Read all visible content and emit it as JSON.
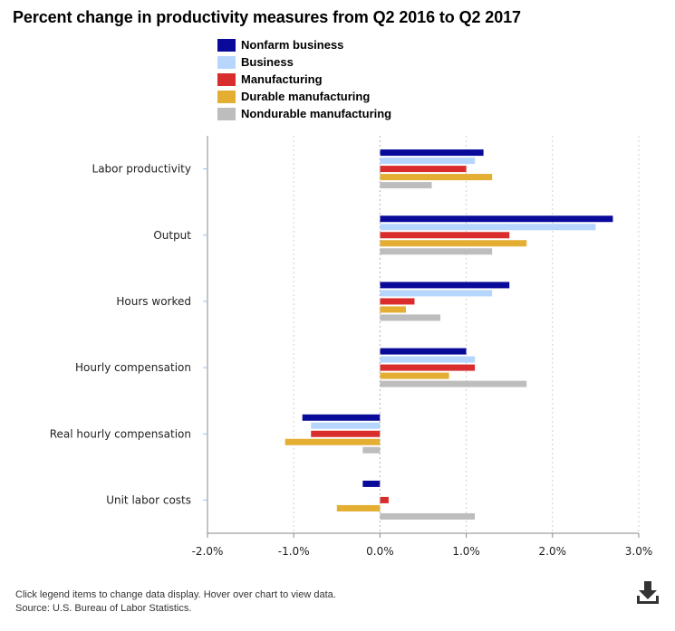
{
  "title": "Percent change in productivity measures from Q2 2016 to Q2 2017",
  "legend": [
    {
      "label": "Nonfarm business",
      "color": "#0a0a9a"
    },
    {
      "label": "Business",
      "color": "#b7d6fd"
    },
    {
      "label": "Manufacturing",
      "color": "#d92d2d"
    },
    {
      "label": "Durable manufacturing",
      "color": "#e3ae32"
    },
    {
      "label": "Nondurable manufacturing",
      "color": "#bdbdbd"
    }
  ],
  "footer": {
    "note": "Click legend items to change data display. Hover over chart to view data.",
    "source": "Source: U.S. Bureau of Labor Statistics."
  },
  "download_icon": "download-icon",
  "chart_data": {
    "type": "bar",
    "orientation": "horizontal",
    "title": "Percent change in productivity measures from Q2 2016 to Q2 2017",
    "categories": [
      "Labor productivity",
      "Output",
      "Hours worked",
      "Hourly compensation",
      "Real hourly compensation",
      "Unit labor costs"
    ],
    "series": [
      {
        "name": "Nonfarm business",
        "values": [
          1.2,
          2.7,
          1.5,
          1.0,
          -0.9,
          -0.2
        ]
      },
      {
        "name": "Business",
        "values": [
          1.1,
          2.5,
          1.3,
          1.1,
          -0.8,
          0.0
        ]
      },
      {
        "name": "Manufacturing",
        "values": [
          1.0,
          1.5,
          0.4,
          1.1,
          -0.8,
          0.1
        ]
      },
      {
        "name": "Durable manufacturing",
        "values": [
          1.3,
          1.7,
          0.3,
          0.8,
          -1.1,
          -0.5
        ]
      },
      {
        "name": "Nondurable manufacturing",
        "values": [
          0.6,
          1.3,
          0.7,
          1.7,
          -0.2,
          1.1
        ]
      }
    ],
    "xlim": [
      -2.0,
      3.0
    ],
    "x_ticks": [
      -2.0,
      -1.0,
      0.0,
      1.0,
      2.0,
      3.0
    ],
    "x_tick_labels": [
      "-2.0%",
      "-1.0%",
      "0.0%",
      "1.0%",
      "2.0%",
      "3.0%"
    ],
    "grid": true,
    "legend_position": "top"
  }
}
